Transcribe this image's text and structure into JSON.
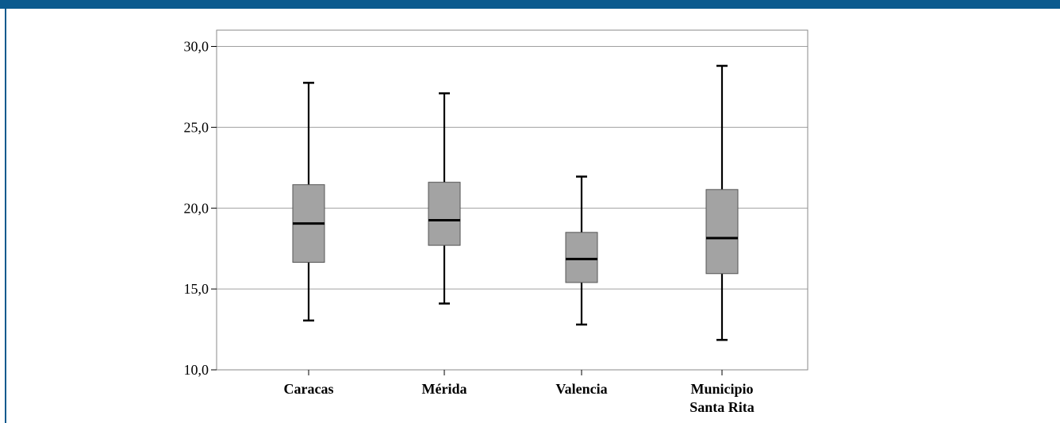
{
  "colors": {
    "frame_bar": "#0b5a8e",
    "box_fill": "#a3a3a3",
    "grid": "#a0a0a0"
  },
  "chart_data": {
    "type": "boxplot",
    "title": "",
    "xlabel": "",
    "ylabel": "",
    "ylim": [
      10.0,
      30.0
    ],
    "yticks": [
      "10,0",
      "15,0",
      "20,0",
      "25,0",
      "30,0"
    ],
    "ytick_values": [
      10,
      15,
      20,
      25,
      30
    ],
    "grid": true,
    "categories": [
      [
        "Caracas"
      ],
      [
        "Mérida"
      ],
      [
        "Valencia"
      ],
      [
        "Municipio",
        "Santa Rita"
      ]
    ],
    "boxes": [
      {
        "min": 13.05,
        "q1": 16.65,
        "median": 19.05,
        "q3": 21.45,
        "max": 27.75
      },
      {
        "min": 14.1,
        "q1": 17.7,
        "median": 19.25,
        "q3": 21.6,
        "max": 27.1
      },
      {
        "min": 12.8,
        "q1": 15.4,
        "median": 16.85,
        "q3": 18.5,
        "max": 21.95
      },
      {
        "min": 11.85,
        "q1": 15.95,
        "median": 18.15,
        "q3": 21.15,
        "max": 28.8
      }
    ]
  }
}
